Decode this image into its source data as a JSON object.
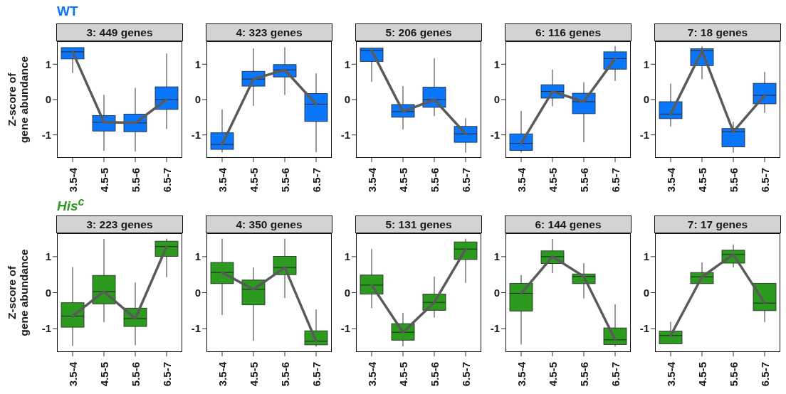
{
  "chart_data": [
    {
      "type": "box",
      "title": "3: 449 genes",
      "annotations": [
        "WT"
      ],
      "ylabel": "Z-score of\ngene abundance",
      "categories": [
        "3.5-4",
        "4.5-5",
        "5.5-6",
        "6.5-7"
      ],
      "ylim": [
        -1.65,
        1.65
      ],
      "yticks": [
        -1,
        0,
        1
      ],
      "series": [
        {
          "type": "line",
          "color": "#5a5a5a",
          "values": [
            1.35,
            -0.64,
            -0.66,
            0
          ]
        },
        {
          "type": "box",
          "color": "#0a77fa",
          "boxes": [
            {
              "low": 0.75,
              "q1": 1.15,
              "median": 1.35,
              "q3": 1.47,
              "high": 1.5
            },
            {
              "low": -1.45,
              "q1": -0.89,
              "median": -0.64,
              "q3": -0.45,
              "high": 0.13
            },
            {
              "low": -1.47,
              "q1": -0.91,
              "median": -0.66,
              "q3": -0.41,
              "high": 0.33
            },
            {
              "low": -0.83,
              "q1": -0.28,
              "median": 0,
              "q3": 0.36,
              "high": 1.3
            }
          ]
        }
      ]
    },
    {
      "type": "box",
      "title": "4: 323 genes",
      "categories": [
        "3.5-4",
        "4.5-5",
        "5.5-6",
        "6.5-7"
      ],
      "ylim": [
        -1.65,
        1.65
      ],
      "yticks": [
        -1,
        0,
        1
      ],
      "series": [
        {
          "type": "line",
          "color": "#5a5a5a",
          "values": [
            -1.27,
            0.58,
            0.84,
            -0.13
          ]
        },
        {
          "type": "box",
          "color": "#0a77fa",
          "boxes": [
            {
              "low": -1.5,
              "q1": -1.41,
              "median": -1.27,
              "q3": -0.94,
              "high": -0.28
            },
            {
              "low": -0.18,
              "q1": 0.38,
              "median": 0.58,
              "q3": 0.8,
              "high": 1.45
            },
            {
              "low": 0.13,
              "q1": 0.64,
              "median": 0.84,
              "q3": 0.99,
              "high": 1.48
            },
            {
              "low": -1.49,
              "q1": -0.62,
              "median": -0.13,
              "q3": 0.17,
              "high": 0.74
            }
          ]
        }
      ]
    },
    {
      "type": "box",
      "title": "5: 206 genes",
      "categories": [
        "3.5-4",
        "4.5-5",
        "5.5-6",
        "6.5-7"
      ],
      "ylim": [
        -1.65,
        1.65
      ],
      "yticks": [
        -1,
        0,
        1
      ],
      "series": [
        {
          "type": "line",
          "color": "#5a5a5a",
          "values": [
            1.39,
            -0.34,
            0,
            -0.97
          ]
        },
        {
          "type": "box",
          "color": "#0a77fa",
          "boxes": [
            {
              "low": 0.5,
              "q1": 1.08,
              "median": 1.39,
              "q3": 1.46,
              "high": 1.46
            },
            {
              "low": -0.85,
              "q1": -0.5,
              "median": -0.34,
              "q3": -0.14,
              "high": 0.38
            },
            {
              "low": -0.47,
              "q1": -0.22,
              "median": 0,
              "q3": 0.35,
              "high": 1.17
            },
            {
              "low": -1.5,
              "q1": -1.21,
              "median": -0.97,
              "q3": -0.76,
              "high": -0.53
            }
          ]
        }
      ]
    },
    {
      "type": "box",
      "title": "6: 116 genes",
      "categories": [
        "3.5-4",
        "4.5-5",
        "5.5-6",
        "6.5-7"
      ],
      "ylim": [
        -1.65,
        1.65
      ],
      "yticks": [
        -1,
        0,
        1
      ],
      "series": [
        {
          "type": "line",
          "color": "#5a5a5a",
          "values": [
            -1.24,
            0.23,
            -0.06,
            1.16
          ]
        },
        {
          "type": "box",
          "color": "#0a77fa",
          "boxes": [
            {
              "low": -1.5,
              "q1": -1.44,
              "median": -1.24,
              "q3": -0.97,
              "high": -0.32
            },
            {
              "low": -0.19,
              "q1": 0.04,
              "median": 0.23,
              "q3": 0.42,
              "high": 0.85
            },
            {
              "low": -1.21,
              "q1": -0.4,
              "median": -0.06,
              "q3": 0.18,
              "high": 0.49
            },
            {
              "low": 0.53,
              "q1": 0.86,
              "median": 1.16,
              "q3": 1.35,
              "high": 1.51
            }
          ]
        }
      ]
    },
    {
      "type": "box",
      "title": "7: 18 genes",
      "categories": [
        "3.5-4",
        "4.5-5",
        "5.5-6",
        "6.5-7"
      ],
      "ylim": [
        -1.65,
        1.65
      ],
      "yticks": [
        -1,
        0,
        1
      ],
      "series": [
        {
          "type": "line",
          "color": "#5a5a5a",
          "values": [
            -0.41,
            1.38,
            -0.91,
            0.12
          ]
        },
        {
          "type": "box",
          "color": "#0a77fa",
          "boxes": [
            {
              "low": -0.76,
              "q1": -0.54,
              "median": -0.41,
              "q3": -0.06,
              "high": 0.45
            },
            {
              "low": 0.58,
              "q1": 0.96,
              "median": 1.38,
              "q3": 1.44,
              "high": 1.51
            },
            {
              "low": -1.5,
              "q1": -1.34,
              "median": -0.91,
              "q3": -0.82,
              "high": -0.63
            },
            {
              "low": -0.38,
              "q1": -0.12,
              "median": 0.12,
              "q3": 0.46,
              "high": 0.78
            }
          ]
        }
      ]
    },
    {
      "type": "box",
      "title": "3: 223 genes",
      "annotations": [
        "His$^{c}$"
      ],
      "ylabel": "Z-score of\ngene abundance",
      "categories": [
        "3.5-4",
        "4.5-5",
        "5.5-6",
        "6.5-7"
      ],
      "ylim": [
        -1.65,
        1.65
      ],
      "yticks": [
        -1,
        0,
        1
      ],
      "series": [
        {
          "type": "line",
          "color": "#5a5a5a",
          "values": [
            -0.65,
            0.03,
            -0.72,
            1.28
          ]
        },
        {
          "type": "box",
          "color": "#2b9a1e",
          "boxes": [
            {
              "low": -1.48,
              "q1": -0.96,
              "median": -0.65,
              "q3": -0.28,
              "high": 0.71
            },
            {
              "low": -0.82,
              "q1": -0.31,
              "median": 0.03,
              "q3": 0.48,
              "high": 1.49
            },
            {
              "low": -1.46,
              "q1": -0.94,
              "median": -0.72,
              "q3": -0.43,
              "high": 0.28
            },
            {
              "low": 0.43,
              "q1": 1.01,
              "median": 1.28,
              "q3": 1.43,
              "high": 1.5
            }
          ]
        }
      ]
    },
    {
      "type": "box",
      "title": "4: 350 genes",
      "categories": [
        "3.5-4",
        "4.5-5",
        "5.5-6",
        "6.5-7"
      ],
      "ylim": [
        -1.65,
        1.65
      ],
      "yticks": [
        -1,
        0,
        1
      ],
      "series": [
        {
          "type": "line",
          "color": "#5a5a5a",
          "values": [
            0.56,
            0.09,
            0.7,
            -1.35
          ]
        },
        {
          "type": "box",
          "color": "#2b9a1e",
          "boxes": [
            {
              "low": -0.62,
              "q1": 0.25,
              "median": 0.56,
              "q3": 0.84,
              "high": 1.5
            },
            {
              "low": -1.34,
              "q1": -0.34,
              "median": 0.09,
              "q3": 0.35,
              "high": 0.7
            },
            {
              "low": -0.15,
              "q1": 0.5,
              "median": 0.7,
              "q3": 1.01,
              "high": 1.5
            },
            {
              "low": -1.5,
              "q1": -1.45,
              "median": -1.35,
              "q3": -1.06,
              "high": -0.47
            }
          ]
        }
      ]
    },
    {
      "type": "box",
      "title": "5: 131 genes",
      "categories": [
        "3.5-4",
        "4.5-5",
        "5.5-6",
        "6.5-7"
      ],
      "ylim": [
        -1.65,
        1.65
      ],
      "yticks": [
        -1,
        0,
        1
      ],
      "series": [
        {
          "type": "line",
          "color": "#5a5a5a",
          "values": [
            0.21,
            -1.1,
            -0.27,
            1.21
          ]
        },
        {
          "type": "box",
          "color": "#2b9a1e",
          "boxes": [
            {
              "low": -0.43,
              "q1": -0.04,
              "median": 0.21,
              "q3": 0.49,
              "high": 1.21
            },
            {
              "low": -1.49,
              "q1": -1.32,
              "median": -1.1,
              "q3": -0.86,
              "high": -0.56
            },
            {
              "low": -0.69,
              "q1": -0.49,
              "median": -0.27,
              "q3": -0.04,
              "high": 0.45
            },
            {
              "low": 0.27,
              "q1": 0.92,
              "median": 1.21,
              "q3": 1.41,
              "high": 1.5
            }
          ]
        }
      ]
    },
    {
      "type": "box",
      "title": "6: 144 genes",
      "categories": [
        "3.5-4",
        "4.5-5",
        "5.5-6",
        "6.5-7"
      ],
      "ylim": [
        -1.65,
        1.65
      ],
      "yticks": [
        -1,
        0,
        1
      ],
      "series": [
        {
          "type": "line",
          "color": "#5a5a5a",
          "values": [
            -0.02,
            1,
            0.45,
            -1.31
          ]
        },
        {
          "type": "box",
          "color": "#2b9a1e",
          "boxes": [
            {
              "low": -1.44,
              "q1": -0.51,
              "median": -0.02,
              "q3": 0.26,
              "high": 0.49
            },
            {
              "low": 0.54,
              "q1": 0.81,
              "median": 1,
              "q3": 1.16,
              "high": 1.49
            },
            {
              "low": -0.16,
              "q1": 0.25,
              "median": 0.45,
              "q3": 0.52,
              "high": 0.82
            },
            {
              "low": -1.5,
              "q1": -1.44,
              "median": -1.31,
              "q3": -0.98,
              "high": -0.32
            }
          ]
        }
      ]
    },
    {
      "type": "box",
      "title": "7: 17 genes",
      "categories": [
        "3.5-4",
        "4.5-5",
        "5.5-6",
        "6.5-7"
      ],
      "ylim": [
        -1.65,
        1.65
      ],
      "yticks": [
        -1,
        0,
        1
      ],
      "series": [
        {
          "type": "line",
          "color": "#5a5a5a",
          "values": [
            -1.19,
            0.44,
            1.06,
            -0.29
          ]
        },
        {
          "type": "box",
          "color": "#2b9a1e",
          "boxes": [
            {
              "low": -1.42,
              "q1": -1.42,
              "median": -1.19,
              "q3": -1.07,
              "high": -0.81
            },
            {
              "low": 0.25,
              "q1": 0.25,
              "median": 0.44,
              "q3": 0.56,
              "high": 0.84
            },
            {
              "low": 0.7,
              "q1": 0.82,
              "median": 1.06,
              "q3": 1.18,
              "high": 1.34
            },
            {
              "low": -0.82,
              "q1": -0.5,
              "median": -0.29,
              "q3": 0.26,
              "high": 0.26
            }
          ]
        }
      ]
    }
  ]
}
